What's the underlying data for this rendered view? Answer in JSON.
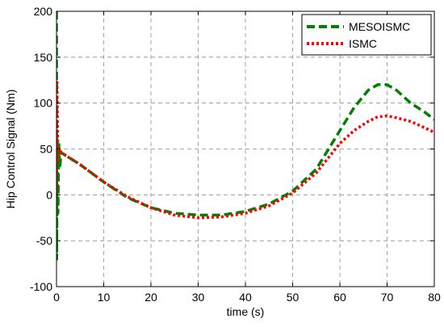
{
  "chart_data": {
    "type": "line",
    "title": "",
    "xlabel": "time (s)",
    "ylabel": "Hip Control Signal (Nm)",
    "xlim": [
      0,
      80
    ],
    "ylim": [
      -100,
      200
    ],
    "xticks": [
      "0",
      "10",
      "20",
      "30",
      "40",
      "50",
      "60",
      "70",
      "80"
    ],
    "yticks": [
      "200",
      "150",
      "100",
      "50",
      "0",
      "-50",
      "-100"
    ],
    "grid": true,
    "legend_position": "top-right",
    "series": [
      {
        "name": "MESOISMC",
        "color": "#008000",
        "style": "dashed",
        "x": [
          0,
          0.05,
          0.15,
          0.3,
          0.5,
          0.7,
          1,
          5,
          10,
          15,
          20,
          25,
          30,
          35,
          40,
          45,
          50,
          55,
          60,
          63,
          66,
          68,
          70,
          72,
          75,
          78,
          80
        ],
        "y": [
          200,
          -70,
          60,
          -20,
          55,
          30,
          46,
          33,
          14,
          -3,
          -14,
          -20,
          -22,
          -22,
          -18,
          -10,
          4,
          28,
          70,
          95,
          114,
          120,
          120,
          114,
          100,
          90,
          82
        ]
      },
      {
        "name": "ISMC",
        "color": "#ff0000",
        "style": "dotted",
        "x": [
          0,
          0.1,
          0.3,
          0.6,
          1,
          5,
          10,
          15,
          20,
          25,
          30,
          35,
          40,
          45,
          50,
          55,
          60,
          63,
          66,
          68,
          70,
          72,
          75,
          78,
          80
        ],
        "y": [
          0,
          125,
          35,
          50,
          46,
          33,
          14,
          -2,
          -14,
          -22,
          -25,
          -24,
          -20,
          -12,
          2,
          24,
          56,
          70,
          80,
          85,
          86,
          84,
          80,
          73,
          68
        ]
      }
    ]
  }
}
